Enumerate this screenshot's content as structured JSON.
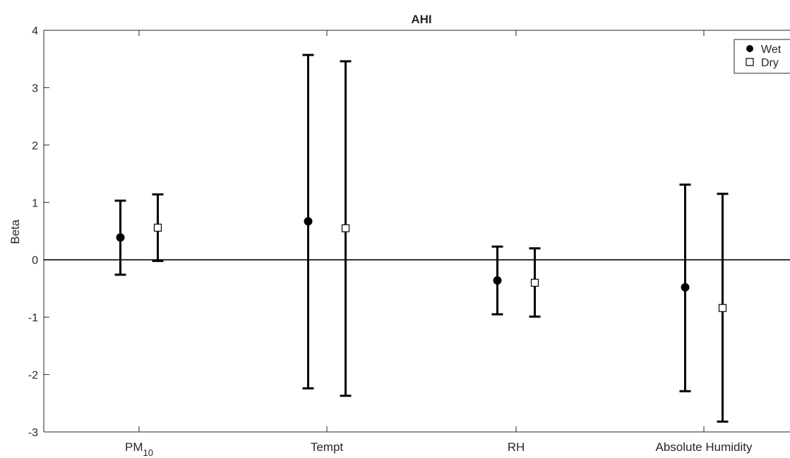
{
  "chart_data": {
    "type": "scatter",
    "title": "AHI",
    "xlabel": "",
    "ylabel": "Beta",
    "ylim": [
      -3,
      4
    ],
    "yticks": [
      "-3",
      "-2",
      "-1",
      "0",
      "1",
      "2",
      "3",
      "4"
    ],
    "categories": [
      {
        "main": "PM",
        "sub": "10"
      },
      {
        "main": "Tempt",
        "sub": ""
      },
      {
        "main": "RH",
        "sub": ""
      },
      {
        "main": "Absolute Humidity",
        "sub": ""
      }
    ],
    "reference_line": 0,
    "grid": false,
    "legend_position": "top-right",
    "series": [
      {
        "name": "Wet",
        "marker": "filled-circle",
        "color": "#000000",
        "values": [
          0.39,
          0.67,
          -0.36,
          -0.48
        ],
        "lower": [
          -0.26,
          -2.24,
          -0.95,
          -2.29
        ],
        "upper": [
          1.03,
          3.57,
          0.23,
          1.31
        ]
      },
      {
        "name": "Dry",
        "marker": "open-square",
        "color": "#000000",
        "values": [
          0.56,
          0.55,
          -0.4,
          -0.84
        ],
        "lower": [
          -0.02,
          -2.37,
          -0.99,
          -2.82
        ],
        "upper": [
          1.14,
          3.46,
          0.2,
          1.15
        ]
      }
    ]
  }
}
